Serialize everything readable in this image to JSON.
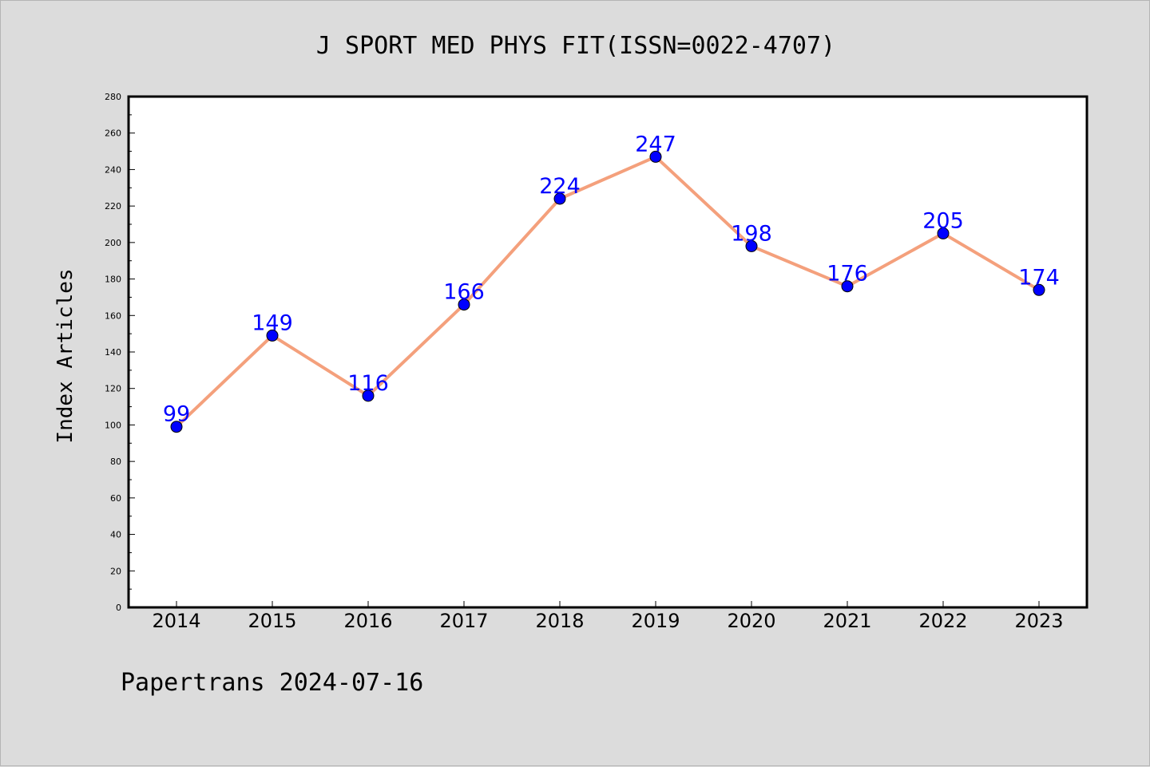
{
  "chart_data": {
    "type": "line",
    "title": "J SPORT MED PHYS FIT(ISSN=0022-4707)",
    "xlabel": "",
    "ylabel": "Index Articles",
    "categories": [
      "2014",
      "2015",
      "2016",
      "2017",
      "2018",
      "2019",
      "2020",
      "2021",
      "2022",
      "2023"
    ],
    "series": [
      {
        "values": [
          99,
          149,
          116,
          166,
          224,
          247,
          198,
          176,
          205,
          174
        ]
      }
    ],
    "data_labels": [
      "99",
      "149",
      "116",
      "166",
      "224",
      "247",
      "198",
      "176",
      "205",
      "174"
    ],
    "ylim": [
      0,
      280
    ],
    "yticks": [
      0,
      20,
      40,
      60,
      80,
      100,
      120,
      140,
      160,
      180,
      200,
      220,
      240,
      260,
      280
    ],
    "ytick_labels": [
      "0",
      "20",
      "40",
      "60",
      "80",
      "100",
      "120",
      "140",
      "160",
      "180",
      "200",
      "220",
      "240",
      "260",
      "280"
    ],
    "grid": false,
    "legend": "none"
  },
  "footer": {
    "text": "Papertrans 2024-07-16"
  },
  "colors": {
    "background": "#dcdcdc",
    "plot_background": "#ffffff",
    "line": "#f4a07c",
    "marker": "#0000ff",
    "data_label": "#0000ff",
    "axis": "#000000"
  }
}
